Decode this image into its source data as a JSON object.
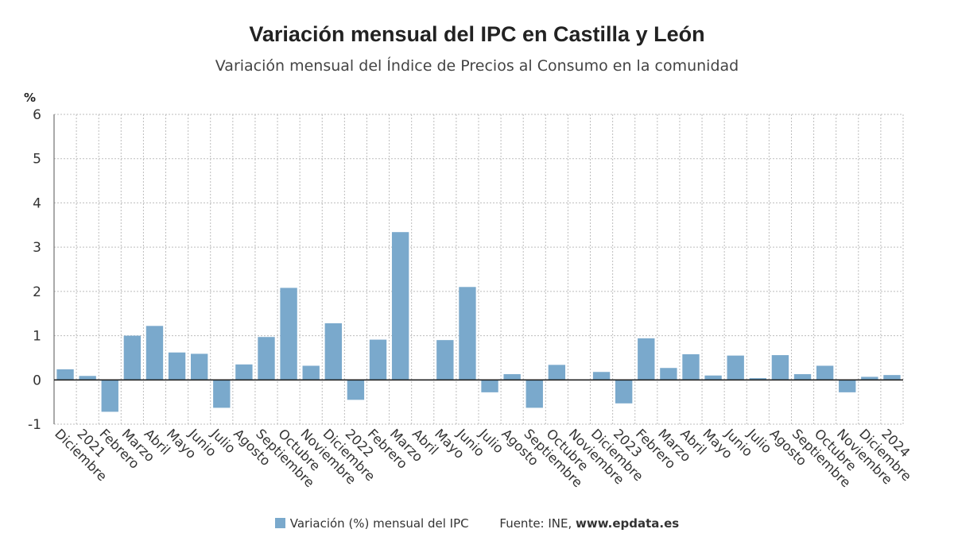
{
  "title": "Variación mensual del IPC en Castilla y León",
  "subtitle": "Variación mensual del Índice de Precios al Consumo en la comunidad",
  "legend": {
    "series_label": "Variación (%) mensual del IPC",
    "source_label": "Fuente: INE,",
    "source_url": "www.epdata.es"
  },
  "colors": {
    "bar": "#7aa9cc",
    "grid": "#bdbdbd",
    "axis": "#222222"
  },
  "chart_data": {
    "type": "bar",
    "title": "Variación mensual del IPC en Castilla y León",
    "subtitle": "Variación mensual del Índice de Precios al Consumo en la comunidad",
    "ylabel": "%",
    "ylim": [
      -1,
      6
    ],
    "yticks": [
      -1,
      0,
      1,
      2,
      3,
      4,
      5,
      6
    ],
    "grid": true,
    "categories": [
      "Diciembre",
      "2021",
      "Febrero",
      "Marzo",
      "Abril",
      "Mayo",
      "Junio",
      "Julio",
      "Agosto",
      "Septiembre",
      "Octubre",
      "Noviembre",
      "Diciembre",
      "2022",
      "Febrero",
      "Marzo",
      "Abril",
      "Mayo",
      "Junio",
      "Julio",
      "Agosto",
      "Septiembre",
      "Octubre",
      "Noviembre",
      "Diciembre",
      "2023",
      "Febrero",
      "Marzo",
      "Abril",
      "Mayo",
      "Junio",
      "Julio",
      "Agosto",
      "Septiembre",
      "Octubre",
      "Noviembre",
      "Diciembre",
      "2024"
    ],
    "series": [
      {
        "name": "Variación (%) mensual del IPC",
        "values": [
          0.24,
          0.09,
          -0.72,
          1.0,
          1.22,
          0.62,
          0.59,
          -0.63,
          0.35,
          0.97,
          2.08,
          0.32,
          1.28,
          -0.45,
          0.91,
          3.34,
          0.01,
          0.9,
          2.1,
          -0.28,
          0.13,
          -0.63,
          0.34,
          0.01,
          0.18,
          -0.53,
          0.94,
          0.27,
          0.58,
          0.1,
          0.55,
          0.04,
          0.56,
          0.13,
          0.32,
          -0.28,
          0.07,
          0.11
        ]
      }
    ]
  }
}
